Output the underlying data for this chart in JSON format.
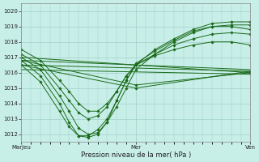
{
  "title": "",
  "xlabel": "Pression niveau de la mer( hPa )",
  "ylabel": "",
  "bg_color": "#c8eee8",
  "grid_color": "#a0d0c8",
  "line_color": "#1a6b1a",
  "ylim": [
    1011.5,
    1020.5
  ],
  "yticks": [
    1012,
    1013,
    1014,
    1015,
    1016,
    1017,
    1018,
    1019,
    1020
  ],
  "xtick_labels": [
    "MarJeu",
    "Mer",
    "Ven"
  ],
  "xtick_positions": [
    0,
    48,
    96
  ],
  "series": [
    {
      "x": [
        0,
        8,
        16,
        20,
        24,
        28,
        32,
        36,
        40,
        44,
        48,
        56,
        64,
        72,
        80,
        88,
        96
      ],
      "y": [
        1017.0,
        1016.2,
        1014.5,
        1013.5,
        1012.4,
        1012.0,
        1012.1,
        1012.8,
        1014.2,
        1015.5,
        1016.5,
        1017.5,
        1018.2,
        1018.8,
        1019.2,
        1019.3,
        1019.3
      ]
    },
    {
      "x": [
        0,
        8,
        16,
        20,
        24,
        28,
        32,
        36,
        40,
        44,
        48,
        56,
        64,
        72,
        80,
        88,
        96
      ],
      "y": [
        1016.8,
        1015.8,
        1014.0,
        1012.8,
        1011.9,
        1011.8,
        1012.0,
        1012.8,
        1013.8,
        1015.0,
        1016.2,
        1017.2,
        1018.0,
        1018.6,
        1019.0,
        1019.1,
        1019.1
      ]
    },
    {
      "x": [
        0,
        8,
        16,
        20,
        24,
        28,
        32,
        36,
        40,
        44,
        48,
        56,
        64,
        72,
        80,
        88,
        96
      ],
      "y": [
        1016.5,
        1015.4,
        1013.5,
        1012.5,
        1011.9,
        1011.9,
        1012.3,
        1013.0,
        1014.2,
        1015.5,
        1016.6,
        1017.4,
        1018.1,
        1018.7,
        1019.0,
        1019.0,
        1018.8
      ]
    },
    {
      "x": [
        0,
        8,
        16,
        20,
        24,
        28,
        32,
        36,
        40,
        44,
        48,
        56,
        64,
        72,
        80,
        88,
        96
      ],
      "y": [
        1017.2,
        1016.5,
        1015.0,
        1014.2,
        1013.4,
        1013.0,
        1013.2,
        1013.8,
        1014.8,
        1015.8,
        1016.5,
        1017.2,
        1017.8,
        1018.2,
        1018.5,
        1018.6,
        1018.5
      ]
    },
    {
      "x": [
        0,
        8,
        16,
        20,
        24,
        28,
        32,
        36,
        40,
        44,
        48,
        56,
        64,
        72,
        80,
        88,
        96
      ],
      "y": [
        1017.5,
        1016.8,
        1015.5,
        1014.8,
        1014.0,
        1013.5,
        1013.5,
        1014.0,
        1014.8,
        1015.8,
        1016.5,
        1017.1,
        1017.5,
        1017.8,
        1018.0,
        1018.0,
        1017.8
      ]
    },
    {
      "x": [
        0,
        96
      ],
      "y": [
        1016.8,
        1016.2
      ]
    },
    {
      "x": [
        0,
        96
      ],
      "y": [
        1016.5,
        1016.1
      ]
    },
    {
      "x": [
        0,
        96
      ],
      "y": [
        1016.2,
        1015.9
      ]
    },
    {
      "x": [
        0,
        96
      ],
      "y": [
        1017.0,
        1016.0
      ]
    },
    {
      "x": [
        0,
        48,
        96
      ],
      "y": [
        1016.8,
        1015.2,
        1016.0
      ]
    },
    {
      "x": [
        0,
        48,
        96
      ],
      "y": [
        1016.5,
        1015.0,
        1016.1
      ]
    }
  ],
  "marker_interval": 8
}
